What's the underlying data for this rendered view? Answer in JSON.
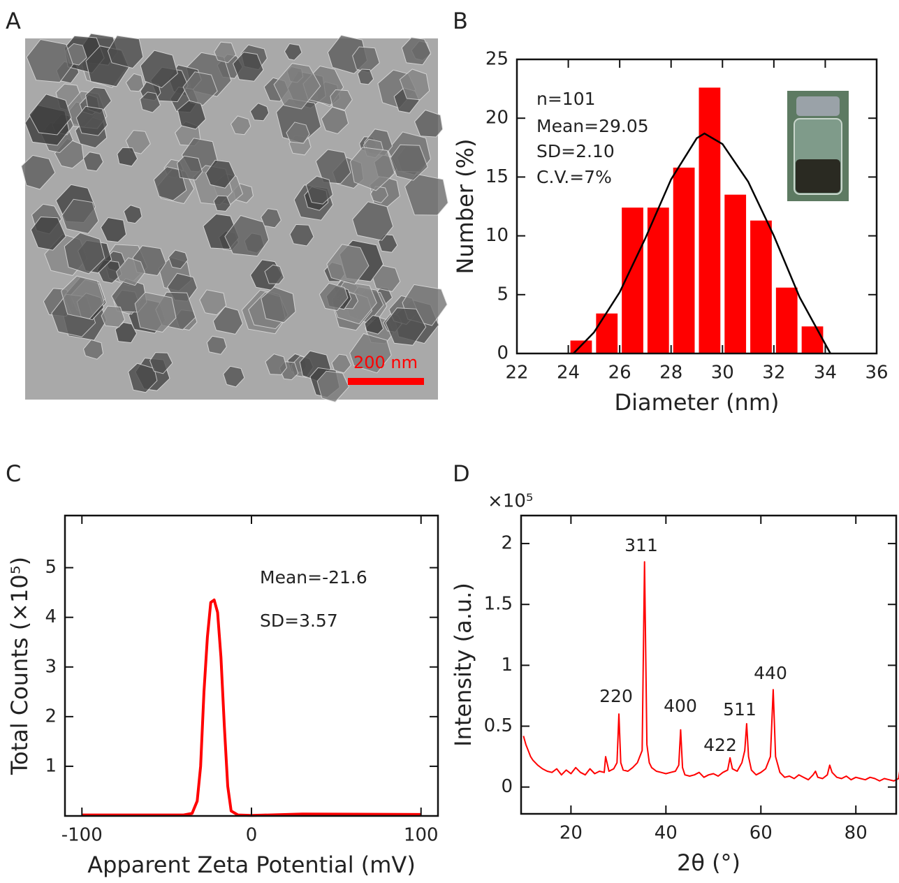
{
  "image_panel": {
    "label": "A",
    "scale_bar": "200 nm"
  },
  "chart_data": [
    {
      "type": "histogram",
      "label": "B",
      "x_label": "Diameter (nm)",
      "y_label": "Number (%)",
      "bins": [
        24,
        25,
        26,
        27,
        28,
        29,
        30,
        31,
        32,
        33,
        34
      ],
      "values": [
        1.1,
        3.4,
        12.4,
        12.4,
        15.8,
        22.6,
        13.5,
        11.3,
        5.6,
        2.3
      ],
      "color": "#ff0000",
      "fit_curve": {
        "x": [
          24.2,
          25,
          26,
          27,
          28,
          29,
          29.3,
          30,
          31,
          32,
          33,
          34,
          34.2
        ],
        "y": [
          0,
          1.8,
          5.2,
          9.8,
          14.8,
          18.3,
          18.7,
          17.8,
          14.6,
          10,
          4.8,
          0.8,
          0
        ],
        "color": "#000000"
      },
      "annotations": [
        "n=101",
        "Mean=29.05",
        "SD=2.10",
        "C.V.=7%"
      ],
      "xlim": [
        22,
        36
      ],
      "xticks": [
        22,
        24,
        26,
        28,
        30,
        32,
        34,
        36
      ],
      "ylim": [
        0,
        25
      ],
      "yticks": [
        0,
        5,
        10,
        15,
        20,
        25
      ]
    },
    {
      "type": "line",
      "label": "C",
      "x_label": "Apparent Zeta Potential (mV)",
      "y_label": "Total Counts (×10⁵)",
      "x": [
        -100,
        -40,
        -35,
        -32,
        -30,
        -28,
        -26,
        -24,
        -22,
        -20,
        -18,
        -16,
        -14,
        -12,
        -8,
        0,
        30,
        100
      ],
      "values": [
        0.02,
        0.02,
        0.05,
        0.3,
        1,
        2.5,
        3.6,
        4.3,
        4.35,
        4.1,
        3.2,
        1.8,
        0.6,
        0.1,
        0.02,
        0.01,
        0.04,
        0.03
      ],
      "color": "#ff0000",
      "annotations": [
        "Mean=-21.6",
        "SD=3.57"
      ],
      "xlim": [
        -110,
        110
      ],
      "xticks": [
        -100,
        0,
        100
      ],
      "ylim": [
        0,
        6.05
      ],
      "yticks": [
        1,
        2,
        3,
        4,
        5
      ]
    },
    {
      "type": "line",
      "label": "D",
      "x_label": "2θ (°)",
      "y_label": "Intensity (a.u.)",
      "y_multiplier": "×10⁵",
      "x": [
        10,
        10.5,
        11,
        11.5,
        12,
        13,
        14,
        15,
        16,
        17,
        18,
        19,
        20,
        21,
        22,
        23,
        24,
        25,
        26,
        27,
        27.3,
        28,
        29,
        29.7,
        30.1,
        30.5,
        31,
        32,
        33,
        34,
        35,
        35.5,
        36,
        36.5,
        37,
        38,
        39,
        40,
        41,
        42,
        42.7,
        43.1,
        43.5,
        44,
        45,
        46,
        47,
        48,
        49,
        50,
        51,
        52,
        53,
        53.5,
        54,
        55,
        56,
        56.6,
        57,
        57.4,
        58,
        59,
        60,
        61,
        62,
        62.6,
        63.1,
        64,
        65,
        66,
        67,
        68,
        69,
        70,
        71,
        71.5,
        72,
        73,
        74,
        74.5,
        75,
        76,
        77,
        78,
        79,
        80,
        81,
        82,
        83,
        84,
        85,
        86,
        87,
        88,
        89,
        89.5
      ],
      "values": [
        0.42,
        0.35,
        0.3,
        0.25,
        0.22,
        0.18,
        0.15,
        0.13,
        0.12,
        0.15,
        0.1,
        0.14,
        0.11,
        0.16,
        0.12,
        0.1,
        0.15,
        0.11,
        0.13,
        0.12,
        0.25,
        0.13,
        0.15,
        0.2,
        0.6,
        0.2,
        0.14,
        0.13,
        0.16,
        0.2,
        0.3,
        1.85,
        0.35,
        0.2,
        0.16,
        0.13,
        0.12,
        0.11,
        0.12,
        0.13,
        0.18,
        0.47,
        0.16,
        0.1,
        0.09,
        0.1,
        0.12,
        0.08,
        0.1,
        0.11,
        0.09,
        0.12,
        0.14,
        0.24,
        0.15,
        0.13,
        0.2,
        0.3,
        0.52,
        0.25,
        0.14,
        0.1,
        0.12,
        0.15,
        0.25,
        0.8,
        0.25,
        0.12,
        0.08,
        0.09,
        0.07,
        0.1,
        0.08,
        0.06,
        0.1,
        0.13,
        0.08,
        0.07,
        0.1,
        0.18,
        0.12,
        0.08,
        0.07,
        0.09,
        0.06,
        0.08,
        0.07,
        0.06,
        0.08,
        0.07,
        0.05,
        0.07,
        0.06,
        0.05,
        0.07,
        0.2
      ],
      "color": "#ff0000",
      "annotations": [
        "220",
        "311",
        "400",
        "422",
        "511",
        "440"
      ],
      "xlim": [
        9.5,
        88.5
      ],
      "xticks": [
        20,
        40,
        60,
        80
      ],
      "ylim": [
        -0.22,
        2.23
      ],
      "yticks": [
        0,
        0.5,
        1,
        1.5,
        2
      ]
    }
  ]
}
